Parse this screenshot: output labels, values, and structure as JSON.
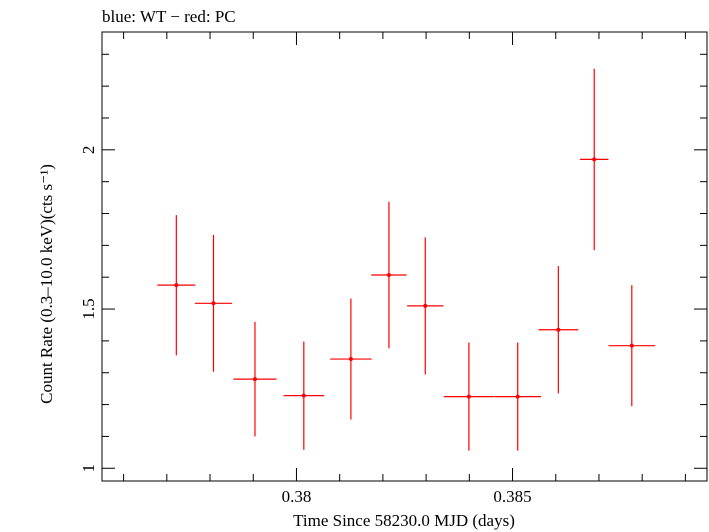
{
  "chart_data": {
    "type": "scatter",
    "title": "blue: WT − red: PC",
    "xlabel": "Time Since 58230.0 MJD (days)",
    "ylabel": "Count Rate (0.3–10.0 keV)(cts s⁻¹)",
    "xlim": [
      0.3755,
      0.3895
    ],
    "ylim": [
      0.96,
      2.37
    ],
    "x_ticks": [
      {
        "value": 0.38,
        "label": "0.38"
      },
      {
        "value": 0.385,
        "label": "0.385"
      }
    ],
    "y_ticks": [
      {
        "value": 1.0,
        "label": "1"
      },
      {
        "value": 1.5,
        "label": "1.5"
      },
      {
        "value": 2.0,
        "label": "2"
      }
    ],
    "grid": false,
    "series": [
      {
        "name": "PC",
        "color": "#ff0000",
        "points": [
          {
            "x": 0.37722,
            "xerr": 0.00044,
            "y": 1.575,
            "yerr_low": 0.22,
            "yerr_high": 0.22
          },
          {
            "x": 0.37808,
            "xerr": 0.00043,
            "y": 1.518,
            "yerr_low": 0.215,
            "yerr_high": 0.215
          },
          {
            "x": 0.37904,
            "xerr": 0.0005,
            "y": 1.28,
            "yerr_low": 0.18,
            "yerr_high": 0.18
          },
          {
            "x": 0.38017,
            "xerr": 0.00047,
            "y": 1.228,
            "yerr_low": 0.17,
            "yerr_high": 0.17
          },
          {
            "x": 0.38126,
            "xerr": 0.00048,
            "y": 1.343,
            "yerr_low": 0.19,
            "yerr_high": 0.19
          },
          {
            "x": 0.38214,
            "xerr": 0.00041,
            "y": 1.607,
            "yerr_low": 0.23,
            "yerr_high": 0.23
          },
          {
            "x": 0.38298,
            "xerr": 0.00042,
            "y": 1.51,
            "yerr_low": 0.215,
            "yerr_high": 0.215
          },
          {
            "x": 0.38399,
            "xerr": 0.00058,
            "y": 1.225,
            "yerr_low": 0.17,
            "yerr_high": 0.17
          },
          {
            "x": 0.38512,
            "xerr": 0.00054,
            "y": 1.225,
            "yerr_low": 0.17,
            "yerr_high": 0.17
          },
          {
            "x": 0.38606,
            "xerr": 0.00046,
            "y": 1.435,
            "yerr_low": 0.2,
            "yerr_high": 0.2
          },
          {
            "x": 0.38689,
            "xerr": 0.00033,
            "y": 1.97,
            "yerr_low": 0.285,
            "yerr_high": 0.285
          },
          {
            "x": 0.38776,
            "xerr": 0.00054,
            "y": 1.385,
            "yerr_low": 0.19,
            "yerr_high": 0.19
          }
        ]
      }
    ]
  }
}
